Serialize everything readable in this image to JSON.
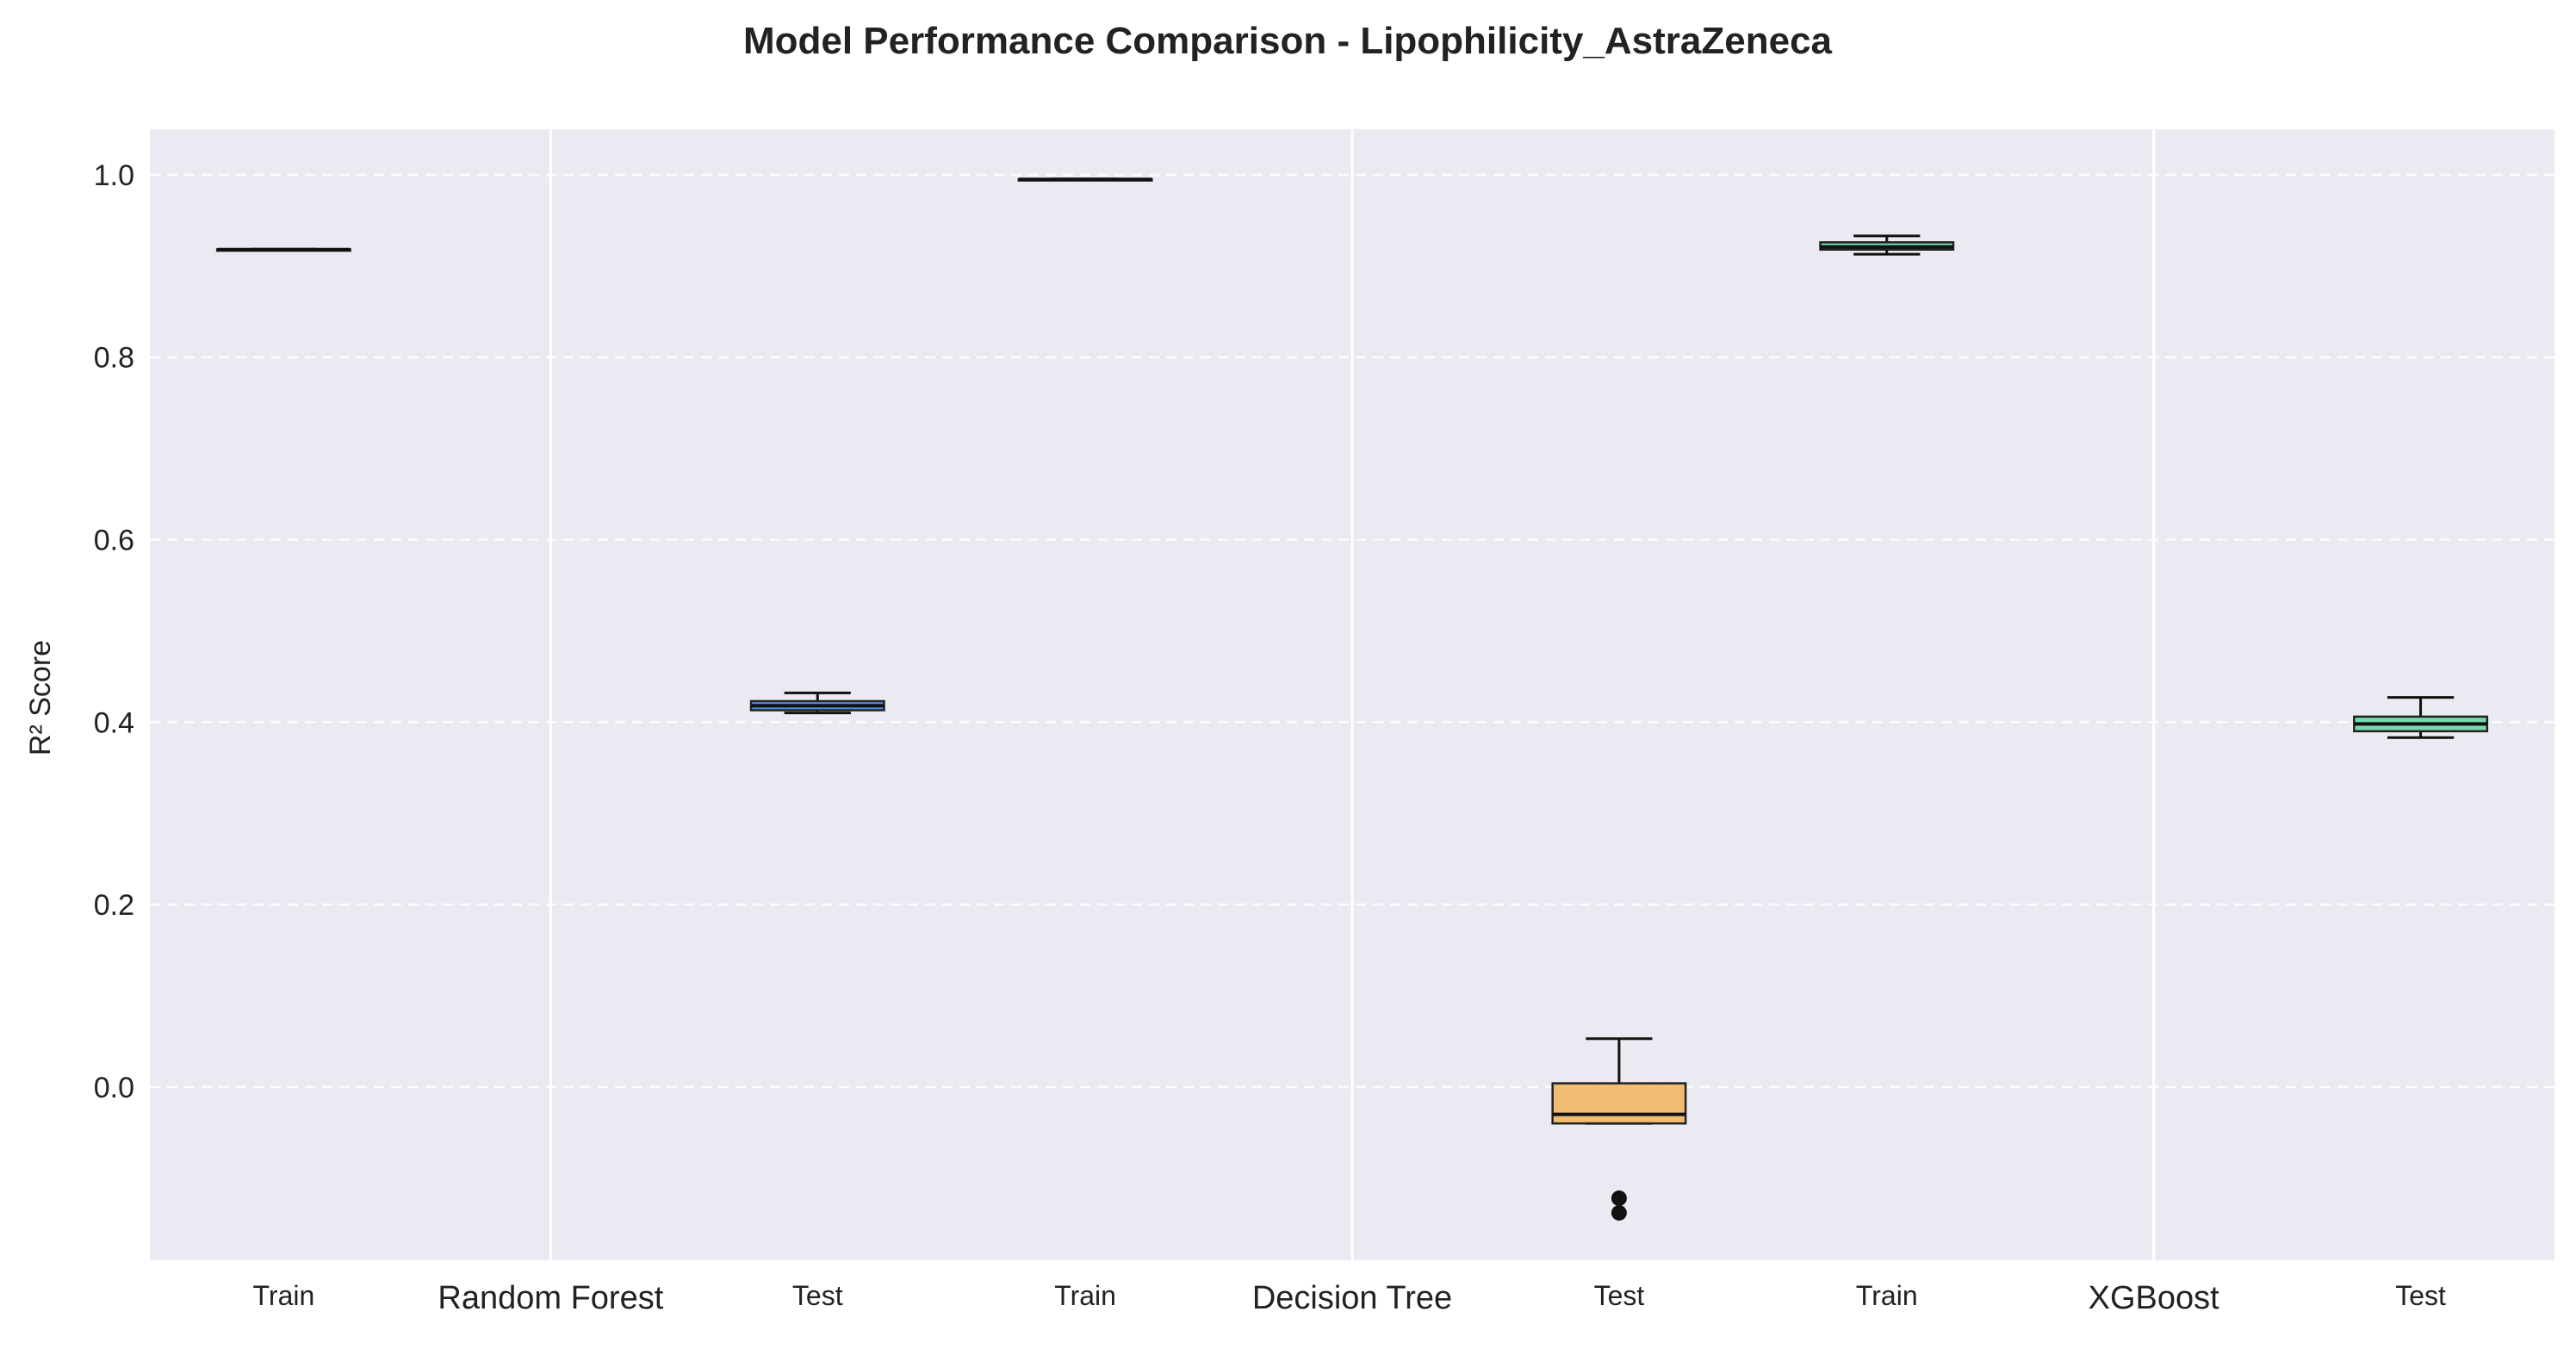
{
  "chart_data": {
    "type": "box",
    "title": "Model Performance Comparison - Lipophilicity_AstraZeneca",
    "xlabel": "",
    "ylabel": "R² Score",
    "ylim": [
      -0.19,
      1.05
    ],
    "yticks": [
      0.0,
      0.2,
      0.4,
      0.6,
      0.8,
      1.0
    ],
    "ytick_labels": [
      "0.0",
      "0.2",
      "0.4",
      "0.6",
      "0.8",
      "1.0"
    ],
    "grid": true,
    "colors": {
      "background": "#eaeaf2",
      "grid": "#ffffff",
      "Random Forest": "#3b7dd8",
      "Decision Tree": "#f0b45a",
      "XGBoost": "#5fd6a0"
    },
    "groups": [
      {
        "name": "Random Forest",
        "boxes": [
          {
            "label": "Train",
            "min": 0.9175,
            "q1": 0.9178,
            "median": 0.918,
            "q3": 0.9182,
            "max": 0.9185,
            "outliers": []
          },
          {
            "label": "Test",
            "min": 0.41,
            "q1": 0.413,
            "median": 0.418,
            "q3": 0.423,
            "max": 0.432,
            "outliers": []
          }
        ]
      },
      {
        "name": "Decision Tree",
        "boxes": [
          {
            "label": "Train",
            "min": 0.9945,
            "q1": 0.9948,
            "median": 0.995,
            "q3": 0.9952,
            "max": 0.9955,
            "outliers": []
          },
          {
            "label": "Test",
            "min": -0.04,
            "q1": -0.04,
            "median": -0.03,
            "q3": 0.004,
            "max": 0.053,
            "outliers": [
              -0.122,
              -0.138
            ]
          }
        ]
      },
      {
        "name": "XGBoost",
        "boxes": [
          {
            "label": "Train",
            "min": 0.913,
            "q1": 0.918,
            "median": 0.921,
            "q3": 0.926,
            "max": 0.933,
            "outliers": []
          },
          {
            "label": "Test",
            "min": 0.383,
            "q1": 0.39,
            "median": 0.398,
            "q3": 0.406,
            "max": 0.427,
            "outliers": []
          }
        ]
      }
    ]
  }
}
